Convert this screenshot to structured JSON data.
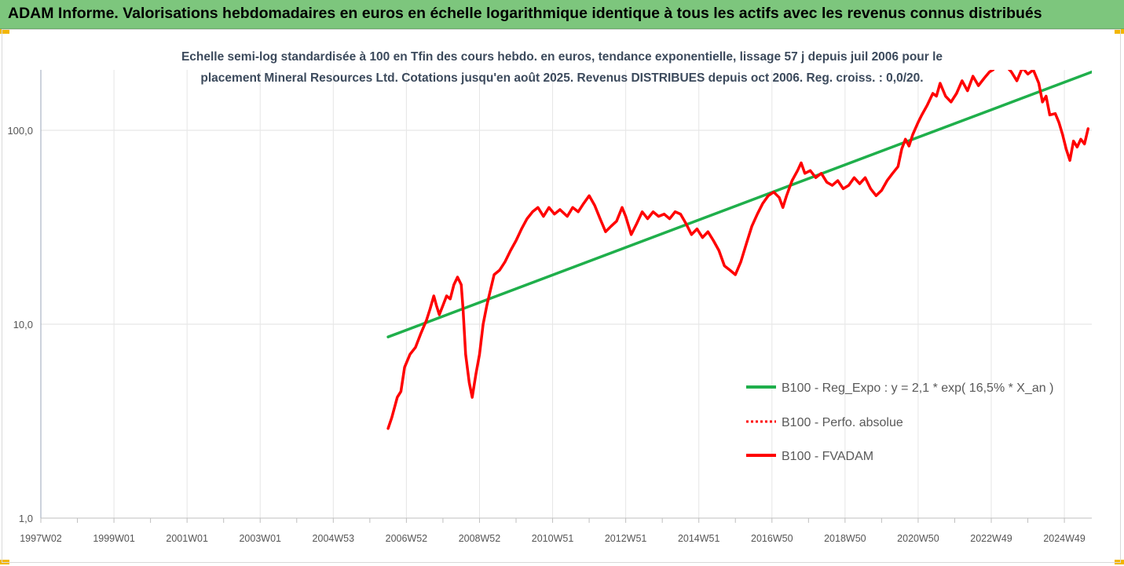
{
  "header": {
    "title": "ADAM Informe. Valorisations hebdomadaires en euros en échelle logarithmique identique à tous les actifs avec les revenus connus distribués"
  },
  "chart_data": {
    "type": "line",
    "subtitle_line1": "Echelle semi-log standardisée à 100 en Tfin des cours hebdo. en euros, tendance exponentielle, lissage 57 j depuis juil 2006 pour le",
    "subtitle_line2": "placement Mineral Resources Ltd. Cotations jusqu'en août 2025. Revenus DISTRIBUES depuis oct 2006. Reg. croiss. : 0,0/20.",
    "y_scale": "log",
    "ylim": [
      1,
      200
    ],
    "y_ticks": [
      {
        "value": 1,
        "label": "1,0"
      },
      {
        "value": 10,
        "label": "10,0"
      },
      {
        "value": 100,
        "label": "100,0"
      }
    ],
    "xlim": [
      1997.0,
      2025.75
    ],
    "x_ticks": [
      {
        "value": 1997.0,
        "label": "1997W02"
      },
      {
        "value": 1999.0,
        "label": "1999W01"
      },
      {
        "value": 2001.0,
        "label": "2001W01"
      },
      {
        "value": 2003.0,
        "label": "2003W01"
      },
      {
        "value": 2005.0,
        "label": "2004W53"
      },
      {
        "value": 2007.0,
        "label": "2006W52"
      },
      {
        "value": 2009.0,
        "label": "2008W52"
      },
      {
        "value": 2011.0,
        "label": "2010W51"
      },
      {
        "value": 2013.0,
        "label": "2012W51"
      },
      {
        "value": 2015.0,
        "label": "2014W51"
      },
      {
        "value": 2017.0,
        "label": "2016W50"
      },
      {
        "value": 2019.0,
        "label": "2018W50"
      },
      {
        "value": 2021.0,
        "label": "2020W50"
      },
      {
        "value": 2023.0,
        "label": "2022W49"
      },
      {
        "value": 2025.0,
        "label": "2024W49"
      }
    ],
    "grid": true,
    "legend_position": "right",
    "series": [
      {
        "name": "B100 - Reg_Expo : y = 2,1 * exp( 16,5% *  X_an )",
        "color": "#1faf4b",
        "style": "solid",
        "points": [
          [
            2006.5,
            8.6
          ],
          [
            2025.75,
            200
          ]
        ]
      },
      {
        "name": "B100 - Perfo. absolue",
        "color": "#ff0000",
        "style": "dotted",
        "points": []
      },
      {
        "name": "B100 - FVADAM",
        "color": "#ff0000",
        "style": "solid",
        "points": [
          [
            2006.5,
            2.9
          ],
          [
            2006.6,
            3.3
          ],
          [
            2006.75,
            4.2
          ],
          [
            2006.85,
            4.5
          ],
          [
            2006.95,
            6.0
          ],
          [
            2007.1,
            7.0
          ],
          [
            2007.25,
            7.6
          ],
          [
            2007.4,
            9.0
          ],
          [
            2007.55,
            10.5
          ],
          [
            2007.65,
            12.0
          ],
          [
            2007.75,
            14.0
          ],
          [
            2007.82,
            12.5
          ],
          [
            2007.9,
            11.2
          ],
          [
            2008.0,
            12.5
          ],
          [
            2008.1,
            14.0
          ],
          [
            2008.2,
            13.5
          ],
          [
            2008.3,
            16.0
          ],
          [
            2008.4,
            17.5
          ],
          [
            2008.5,
            16.0
          ],
          [
            2008.55,
            12.0
          ],
          [
            2008.62,
            7.0
          ],
          [
            2008.72,
            5.0
          ],
          [
            2008.8,
            4.2
          ],
          [
            2008.9,
            5.5
          ],
          [
            2009.0,
            7.0
          ],
          [
            2009.1,
            10.0
          ],
          [
            2009.2,
            12.5
          ],
          [
            2009.3,
            15.0
          ],
          [
            2009.4,
            18.0
          ],
          [
            2009.55,
            19.0
          ],
          [
            2009.7,
            21.0
          ],
          [
            2009.85,
            24.0
          ],
          [
            2010.0,
            27.0
          ],
          [
            2010.15,
            31.0
          ],
          [
            2010.3,
            35.0
          ],
          [
            2010.45,
            38.0
          ],
          [
            2010.6,
            40.0
          ],
          [
            2010.75,
            36.0
          ],
          [
            2010.9,
            40.0
          ],
          [
            2011.05,
            37.0
          ],
          [
            2011.2,
            39.0
          ],
          [
            2011.4,
            36.0
          ],
          [
            2011.55,
            40.0
          ],
          [
            2011.7,
            38.0
          ],
          [
            2011.85,
            42.0
          ],
          [
            2012.0,
            46.0
          ],
          [
            2012.15,
            41.0
          ],
          [
            2012.3,
            35.0
          ],
          [
            2012.45,
            30.0
          ],
          [
            2012.6,
            32.0
          ],
          [
            2012.75,
            34.0
          ],
          [
            2012.9,
            40.0
          ],
          [
            2013.0,
            36.0
          ],
          [
            2013.15,
            29.0
          ],
          [
            2013.3,
            33.0
          ],
          [
            2013.45,
            38.0
          ],
          [
            2013.6,
            35.0
          ],
          [
            2013.75,
            38.0
          ],
          [
            2013.9,
            36.0
          ],
          [
            2014.05,
            37.0
          ],
          [
            2014.2,
            35.0
          ],
          [
            2014.35,
            38.0
          ],
          [
            2014.5,
            37.0
          ],
          [
            2014.65,
            33.0
          ],
          [
            2014.8,
            29.0
          ],
          [
            2014.95,
            31.0
          ],
          [
            2015.1,
            28.0
          ],
          [
            2015.25,
            30.0
          ],
          [
            2015.4,
            27.0
          ],
          [
            2015.55,
            24.0
          ],
          [
            2015.7,
            20.0
          ],
          [
            2015.85,
            19.0
          ],
          [
            2016.0,
            18.0
          ],
          [
            2016.15,
            21.0
          ],
          [
            2016.3,
            26.0
          ],
          [
            2016.45,
            32.0
          ],
          [
            2016.6,
            37.0
          ],
          [
            2016.75,
            42.0
          ],
          [
            2016.9,
            46.0
          ],
          [
            2017.05,
            48.0
          ],
          [
            2017.2,
            45.0
          ],
          [
            2017.3,
            40.0
          ],
          [
            2017.4,
            46.0
          ],
          [
            2017.55,
            55.0
          ],
          [
            2017.7,
            62.0
          ],
          [
            2017.8,
            68.0
          ],
          [
            2017.9,
            60.0
          ],
          [
            2018.05,
            62.0
          ],
          [
            2018.2,
            57.0
          ],
          [
            2018.35,
            60.0
          ],
          [
            2018.5,
            54.0
          ],
          [
            2018.65,
            52.0
          ],
          [
            2018.8,
            55.0
          ],
          [
            2018.95,
            50.0
          ],
          [
            2019.1,
            52.0
          ],
          [
            2019.25,
            57.0
          ],
          [
            2019.4,
            53.0
          ],
          [
            2019.55,
            57.0
          ],
          [
            2019.7,
            50.0
          ],
          [
            2019.85,
            46.0
          ],
          [
            2020.0,
            49.0
          ],
          [
            2020.15,
            55.0
          ],
          [
            2020.3,
            60.0
          ],
          [
            2020.45,
            65.0
          ],
          [
            2020.55,
            80.0
          ],
          [
            2020.65,
            90.0
          ],
          [
            2020.75,
            83.0
          ],
          [
            2020.85,
            95.0
          ],
          [
            2021.0,
            110.0
          ],
          [
            2021.1,
            120.0
          ],
          [
            2021.25,
            135.0
          ],
          [
            2021.4,
            155.0
          ],
          [
            2021.5,
            150.0
          ],
          [
            2021.6,
            175.0
          ],
          [
            2021.75,
            150.0
          ],
          [
            2021.9,
            140.0
          ],
          [
            2022.05,
            155.0
          ],
          [
            2022.2,
            180.0
          ],
          [
            2022.35,
            160.0
          ],
          [
            2022.5,
            190.0
          ],
          [
            2022.65,
            170.0
          ],
          [
            2022.8,
            185.0
          ],
          [
            2022.95,
            200.0
          ],
          [
            2023.05,
            205.0
          ],
          [
            2023.2,
            230.0
          ],
          [
            2023.4,
            215.0
          ],
          [
            2023.55,
            200.0
          ],
          [
            2023.7,
            180.0
          ],
          [
            2023.85,
            210.0
          ],
          [
            2024.0,
            195.0
          ],
          [
            2024.15,
            205.0
          ],
          [
            2024.3,
            175.0
          ],
          [
            2024.4,
            140.0
          ],
          [
            2024.5,
            150.0
          ],
          [
            2024.6,
            120.0
          ],
          [
            2024.75,
            122.0
          ],
          [
            2024.85,
            110.0
          ],
          [
            2024.95,
            95.0
          ],
          [
            2025.05,
            80.0
          ],
          [
            2025.15,
            70.0
          ],
          [
            2025.25,
            88.0
          ],
          [
            2025.35,
            82.0
          ],
          [
            2025.45,
            90.0
          ],
          [
            2025.55,
            85.0
          ],
          [
            2025.65,
            102.0
          ]
        ]
      }
    ]
  }
}
